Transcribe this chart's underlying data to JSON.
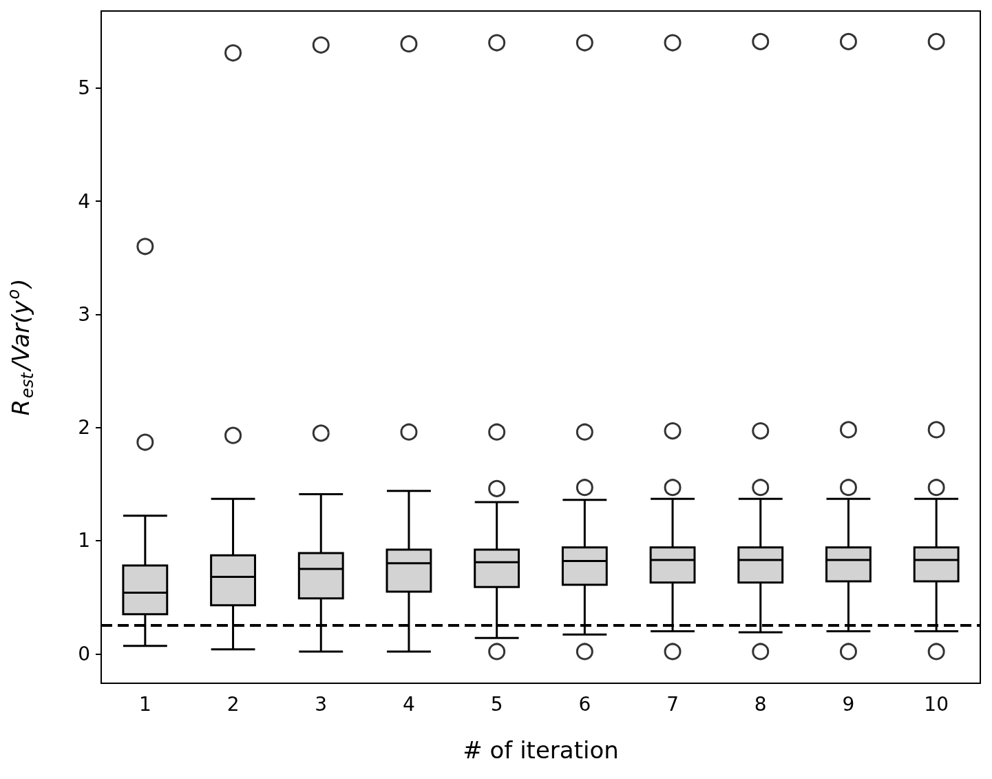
{
  "chart_data": {
    "type": "box",
    "xlabel": "# of iteration",
    "ylabel": "R$_{est}$/Var(y$^{o}$)",
    "categories": [
      "1",
      "2",
      "3",
      "4",
      "5",
      "6",
      "7",
      "8",
      "9",
      "10"
    ],
    "color": "#d3d3d3",
    "boxes": [
      {
        "low": 0.07,
        "q1": 0.35,
        "median": 0.54,
        "q3": 0.78,
        "high": 1.22,
        "outliers": [
          3.6,
          1.87
        ]
      },
      {
        "low": 0.04,
        "q1": 0.43,
        "median": 0.68,
        "q3": 0.87,
        "high": 1.37,
        "outliers": [
          5.31,
          1.93
        ]
      },
      {
        "low": 0.02,
        "q1": 0.49,
        "median": 0.75,
        "q3": 0.89,
        "high": 1.41,
        "outliers": [
          5.38,
          1.95
        ]
      },
      {
        "low": 0.02,
        "q1": 0.55,
        "median": 0.8,
        "q3": 0.92,
        "high": 1.44,
        "outliers": [
          5.39,
          1.96
        ]
      },
      {
        "low": 0.14,
        "q1": 0.59,
        "median": 0.81,
        "q3": 0.92,
        "high": 1.34,
        "outliers": [
          5.4,
          1.96,
          1.46,
          0.02
        ]
      },
      {
        "low": 0.17,
        "q1": 0.61,
        "median": 0.82,
        "q3": 0.94,
        "high": 1.36,
        "outliers": [
          5.4,
          1.96,
          1.47,
          0.02
        ]
      },
      {
        "low": 0.2,
        "q1": 0.63,
        "median": 0.83,
        "q3": 0.94,
        "high": 1.37,
        "outliers": [
          5.4,
          1.97,
          1.47,
          0.02
        ]
      },
      {
        "low": 0.19,
        "q1": 0.63,
        "median": 0.83,
        "q3": 0.94,
        "high": 1.37,
        "outliers": [
          5.41,
          1.97,
          1.47,
          0.02
        ]
      },
      {
        "low": 0.2,
        "q1": 0.64,
        "median": 0.83,
        "q3": 0.94,
        "high": 1.37,
        "outliers": [
          5.41,
          1.98,
          1.47,
          0.02
        ]
      },
      {
        "low": 0.2,
        "q1": 0.64,
        "median": 0.83,
        "q3": 0.94,
        "high": 1.37,
        "outliers": [
          5.41,
          1.98,
          1.47,
          0.02
        ]
      }
    ],
    "ylim": [
      -0.26,
      5.68
    ],
    "yticks": [
      0,
      1,
      2,
      3,
      4,
      5
    ],
    "ref_lines": [
      {
        "axis": "y",
        "value": 0.25,
        "color": "#000000",
        "line_style": "dashed"
      }
    ],
    "grid": false,
    "marker": "circle"
  }
}
